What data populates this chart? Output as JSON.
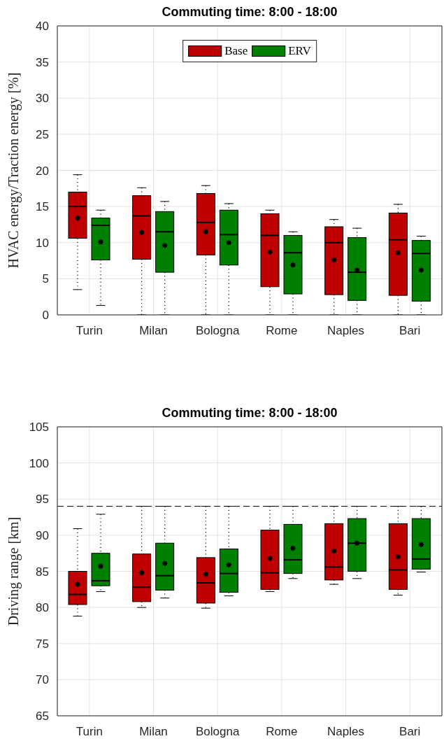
{
  "chart_data": [
    {
      "type": "box",
      "title": "Commuting time: 8:00 - 18:00",
      "ylabel": "HVAC energy/Traction energy [%]",
      "categories": [
        "Turin",
        "Milan",
        "Bologna",
        "Rome",
        "Naples",
        "Bari"
      ],
      "series": [
        {
          "name": "Base",
          "color": "#c00000",
          "boxes": [
            {
              "low": 3.5,
              "q1": 10.6,
              "median": 15.0,
              "q3": 17.0,
              "high": 19.4,
              "mean": 13.4
            },
            {
              "low": 0,
              "q1": 7.7,
              "median": 13.7,
              "q3": 16.5,
              "high": 17.6,
              "mean": 11.4
            },
            {
              "low": 0,
              "q1": 8.3,
              "median": 12.8,
              "q3": 16.8,
              "high": 17.9,
              "mean": 11.5
            },
            {
              "low": 0,
              "q1": 3.9,
              "median": 11.0,
              "q3": 14.0,
              "high": 14.5,
              "mean": 8.7
            },
            {
              "low": 0,
              "q1": 2.8,
              "median": 10.0,
              "q3": 12.2,
              "high": 13.2,
              "mean": 7.6
            },
            {
              "low": 0,
              "q1": 2.7,
              "median": 10.4,
              "q3": 14.1,
              "high": 15.3,
              "mean": 8.6
            }
          ]
        },
        {
          "name": "ERV",
          "color": "#008000",
          "boxes": [
            {
              "low": 1.3,
              "q1": 7.6,
              "median": 12.4,
              "q3": 13.4,
              "high": 14.5,
              "mean": 10.1
            },
            {
              "low": 0,
              "q1": 5.9,
              "median": 11.5,
              "q3": 14.3,
              "high": 15.7,
              "mean": 9.6
            },
            {
              "low": 0,
              "q1": 6.9,
              "median": 11.1,
              "q3": 14.5,
              "high": 15.4,
              "mean": 10.0
            },
            {
              "low": 0,
              "q1": 2.9,
              "median": 8.6,
              "q3": 11.0,
              "high": 11.5,
              "mean": 6.9
            },
            {
              "low": 0,
              "q1": 2.0,
              "median": 5.9,
              "q3": 10.7,
              "high": 12.0,
              "mean": 6.2
            },
            {
              "low": 0,
              "q1": 1.9,
              "median": 8.5,
              "q3": 10.3,
              "high": 10.9,
              "mean": 6.2
            }
          ]
        }
      ],
      "ylim": [
        0,
        40
      ],
      "yticks": [
        0,
        5,
        10,
        15,
        20,
        25,
        30,
        35,
        40
      ],
      "grid": true,
      "legend": "top"
    },
    {
      "type": "box",
      "title": "Commuting time: 8:00 - 18:00",
      "ylabel": "Driving range [km]",
      "categories": [
        "Turin",
        "Milan",
        "Bologna",
        "Rome",
        "Naples",
        "Bari"
      ],
      "series": [
        {
          "color": "#c00000",
          "boxes": [
            {
              "low": 78.8,
              "q1": 80.4,
              "median": 81.8,
              "q3": 85.0,
              "high": 90.9,
              "mean": 83.2
            },
            {
              "low": 80.0,
              "q1": 80.8,
              "median": 82.8,
              "q3": 87.4,
              "high": 94.0,
              "mean": 84.8
            },
            {
              "low": 79.9,
              "q1": 80.6,
              "median": 83.4,
              "q3": 86.9,
              "high": 94.0,
              "mean": 84.6
            },
            {
              "low": 82.2,
              "q1": 82.5,
              "median": 84.8,
              "q3": 90.7,
              "high": 94.0,
              "mean": 86.8
            },
            {
              "low": 83.2,
              "q1": 83.8,
              "median": 85.6,
              "q3": 91.6,
              "high": 94.0,
              "mean": 87.8
            },
            {
              "low": 81.7,
              "q1": 82.5,
              "median": 85.2,
              "q3": 91.6,
              "high": 94.0,
              "mean": 87.0
            }
          ]
        },
        {
          "color": "#008000",
          "boxes": [
            {
              "low": 82.2,
              "q1": 83.0,
              "median": 83.7,
              "q3": 87.5,
              "high": 92.9,
              "mean": 85.7
            },
            {
              "low": 81.3,
              "q1": 82.4,
              "median": 84.4,
              "q3": 88.9,
              "high": 94.0,
              "mean": 86.1
            },
            {
              "low": 81.6,
              "q1": 82.1,
              "median": 84.7,
              "q3": 88.1,
              "high": 94.0,
              "mean": 85.9
            },
            {
              "low": 84.0,
              "q1": 84.7,
              "median": 86.6,
              "q3": 91.5,
              "high": 94.0,
              "mean": 88.2
            },
            {
              "low": 84.0,
              "q1": 85.0,
              "median": 88.9,
              "q3": 92.3,
              "high": 94.0,
              "mean": 88.9
            },
            {
              "low": 84.9,
              "q1": 85.3,
              "median": 86.7,
              "q3": 92.3,
              "high": 94.0,
              "mean": 88.7
            }
          ]
        }
      ],
      "ylim": [
        65,
        105
      ],
      "yticks": [
        65,
        70,
        75,
        80,
        85,
        90,
        95,
        100,
        105
      ],
      "grid": true,
      "ref_lines": [
        {
          "axis": "y",
          "value": 94,
          "color": "#000000",
          "line_style": "dashed"
        }
      ]
    }
  ]
}
